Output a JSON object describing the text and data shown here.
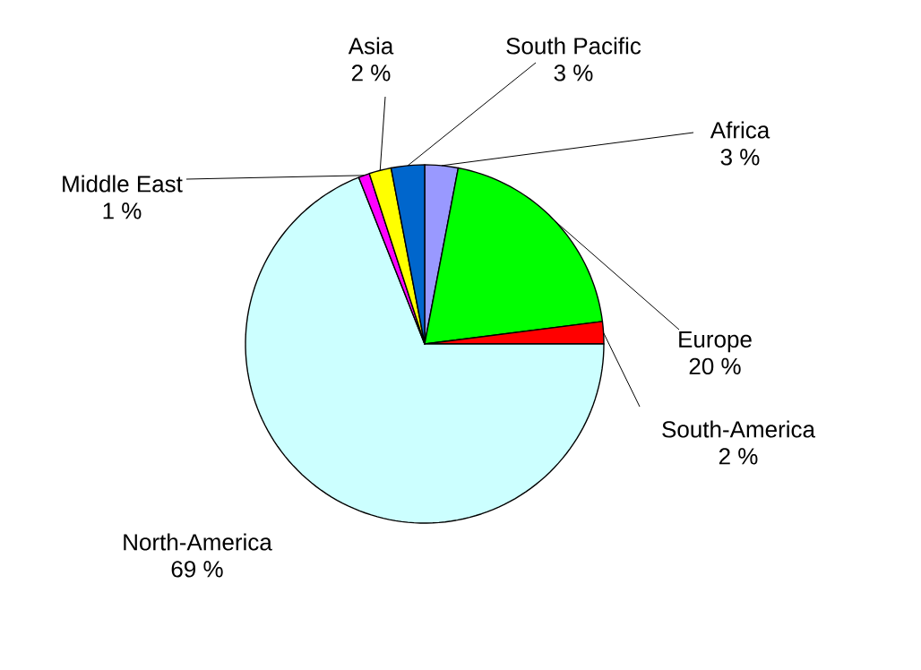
{
  "chart_data": {
    "type": "pie",
    "categories": [
      "Africa",
      "Europe",
      "South-America",
      "North-America",
      "Middle East",
      "Asia",
      "South Pacific"
    ],
    "values": [
      3,
      20,
      2,
      69,
      1,
      2,
      3
    ],
    "value_labels": [
      "3 %",
      "20 %",
      "2 %",
      "69 %",
      "1 %",
      "2 %",
      "3 %"
    ],
    "colors": [
      "#9999ff",
      "#00ff00",
      "#ff0000",
      "#ccffff",
      "#ff00ff",
      "#ffff00",
      "#0066cc"
    ]
  }
}
